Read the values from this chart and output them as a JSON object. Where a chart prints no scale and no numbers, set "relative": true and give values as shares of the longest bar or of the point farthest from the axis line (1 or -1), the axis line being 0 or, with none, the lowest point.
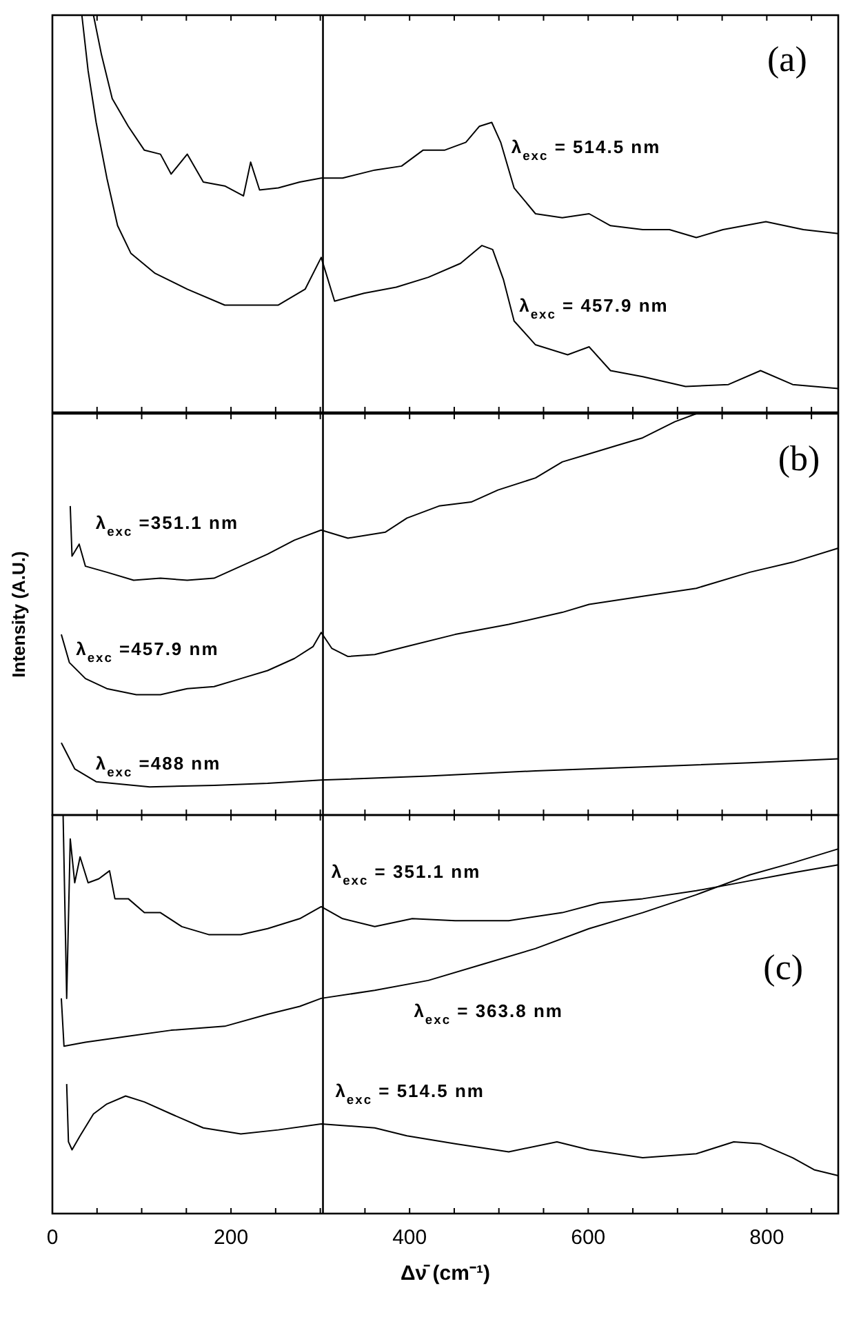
{
  "chart_data": [
    {
      "type": "line",
      "relative": true,
      "tick_labels": false,
      "xlim": [
        0,
        880
      ],
      "xticks": [
        {
          "value": 0,
          "label": null
        },
        {
          "value": 50,
          "label": null
        },
        {
          "value": 100,
          "label": null
        },
        {
          "value": 150,
          "label": null
        },
        {
          "value": 200,
          "label": null
        },
        {
          "value": 250,
          "label": null
        },
        {
          "value": 300,
          "label": null
        },
        {
          "value": 350,
          "label": null
        },
        {
          "value": 400,
          "label": null
        },
        {
          "value": 450,
          "label": null
        },
        {
          "value": 500,
          "label": null
        },
        {
          "value": 550,
          "label": null
        },
        {
          "value": 600,
          "label": null
        },
        {
          "value": 650,
          "label": null
        },
        {
          "value": 700,
          "label": null
        },
        {
          "value": 750,
          "label": null
        },
        {
          "value": 800,
          "label": null
        },
        {
          "value": 850,
          "label": null
        }
      ],
      "annotations": [
        "(a)"
      ],
      "ref_lines": [
        {
          "axis": "x",
          "value": 303,
          "color": "#000000"
        }
      ],
      "series": [
        {
          "name": "λ$_{exc}$ = 514.5 nm",
          "color": "#000000",
          "x": [
            46,
            55,
            67,
            85,
            103,
            121,
            133,
            151,
            169,
            193,
            214,
            222,
            232,
            253,
            277,
            301,
            325,
            361,
            391,
            415,
            439,
            463,
            478,
            492,
            502,
            517,
            541,
            571,
            601,
            625,
            661,
            691,
            721,
            751,
            799,
            841,
            880
          ],
          "values": [
            1.0,
            0.9,
            0.79,
            0.72,
            0.66,
            0.65,
            0.6,
            0.65,
            0.58,
            0.57,
            0.545,
            0.63,
            0.56,
            0.565,
            0.58,
            0.59,
            0.59,
            0.61,
            0.62,
            0.66,
            0.66,
            0.68,
            0.72,
            0.73,
            0.68,
            0.565,
            0.5,
            0.49,
            0.5,
            0.47,
            0.46,
            0.46,
            0.44,
            0.46,
            0.48,
            0.46,
            0.45
          ]
        },
        {
          "name": "λ$_{exc}$ = 457.9 nm",
          "color": "#000000",
          "x": [
            33,
            40,
            49,
            61,
            73,
            88,
            115,
            151,
            193,
            223,
            253,
            283,
            301,
            316,
            349,
            385,
            421,
            457,
            481,
            493,
            505,
            517,
            541,
            577,
            601,
            625,
            661,
            709,
            757,
            793,
            829,
            880
          ],
          "values": [
            1.0,
            0.86,
            0.73,
            0.59,
            0.47,
            0.4,
            0.35,
            0.31,
            0.27,
            0.27,
            0.27,
            0.31,
            0.39,
            0.28,
            0.3,
            0.315,
            0.34,
            0.375,
            0.42,
            0.41,
            0.335,
            0.23,
            0.17,
            0.145,
            0.165,
            0.105,
            0.09,
            0.065,
            0.07,
            0.105,
            0.07,
            0.06
          ]
        }
      ]
    },
    {
      "type": "line",
      "relative": true,
      "tick_labels": false,
      "xlim": [
        0,
        880
      ],
      "xticks": [
        {
          "value": 0,
          "label": null
        },
        {
          "value": 50,
          "label": null
        },
        {
          "value": 100,
          "label": null
        },
        {
          "value": 150,
          "label": null
        },
        {
          "value": 200,
          "label": null
        },
        {
          "value": 250,
          "label": null
        },
        {
          "value": 300,
          "label": null
        },
        {
          "value": 350,
          "label": null
        },
        {
          "value": 400,
          "label": null
        },
        {
          "value": 450,
          "label": null
        },
        {
          "value": 500,
          "label": null
        },
        {
          "value": 550,
          "label": null
        },
        {
          "value": 600,
          "label": null
        },
        {
          "value": 650,
          "label": null
        },
        {
          "value": 700,
          "label": null
        },
        {
          "value": 750,
          "label": null
        },
        {
          "value": 800,
          "label": null
        },
        {
          "value": 850,
          "label": null
        }
      ],
      "ylabel": "Intensity (A.U.)",
      "annotations": [
        "(b)"
      ],
      "ref_lines": [
        {
          "axis": "x",
          "value": 303,
          "color": "#000000"
        }
      ],
      "series": [
        {
          "name": "λ$_{exc}$ =351.1 nm",
          "color": "#000000",
          "x": [
            20,
            22,
            30,
            37,
            61,
            91,
            121,
            151,
            181,
            211,
            241,
            271,
            301,
            331,
            373,
            397,
            433,
            469,
            499,
            541,
            571,
            601,
            631,
            661,
            697,
            721
          ],
          "values": [
            0.77,
            0.645,
            0.675,
            0.62,
            0.605,
            0.585,
            0.59,
            0.585,
            0.59,
            0.62,
            0.65,
            0.685,
            0.71,
            0.69,
            0.705,
            0.74,
            0.77,
            0.78,
            0.81,
            0.84,
            0.88,
            0.9,
            0.92,
            0.94,
            0.98,
            1.0
          ]
        },
        {
          "name": "λ$_{exc}$ =457.9 nm",
          "color": "#000000",
          "x": [
            10,
            19,
            37,
            61,
            94,
            121,
            151,
            181,
            211,
            241,
            271,
            292,
            301,
            313,
            331,
            361,
            397,
            451,
            511,
            571,
            601,
            661,
            721,
            781,
            829,
            880
          ],
          "values": [
            0.45,
            0.38,
            0.34,
            0.315,
            0.3,
            0.3,
            0.315,
            0.32,
            0.34,
            0.36,
            0.39,
            0.42,
            0.455,
            0.415,
            0.395,
            0.4,
            0.42,
            0.45,
            0.475,
            0.505,
            0.525,
            0.545,
            0.565,
            0.605,
            0.63,
            0.665
          ]
        },
        {
          "name": "λ$_{exc}$ =488 nm",
          "color": "#000000",
          "x": [
            10,
            25,
            49,
            109,
            181,
            241,
            301,
            421,
            541,
            661,
            781,
            880
          ],
          "values": [
            0.18,
            0.115,
            0.083,
            0.07,
            0.074,
            0.079,
            0.087,
            0.097,
            0.11,
            0.12,
            0.13,
            0.14
          ]
        }
      ]
    },
    {
      "type": "line",
      "relative": true,
      "tick_labels": "x",
      "xlim": [
        0,
        880
      ],
      "xticks": [
        0,
        {
          "value": 50,
          "label": null
        },
        {
          "value": 100,
          "label": null
        },
        {
          "value": 150,
          "label": null
        },
        200,
        {
          "value": 250,
          "label": null
        },
        {
          "value": 300,
          "label": null
        },
        {
          "value": 350,
          "label": null
        },
        400,
        {
          "value": 450,
          "label": null
        },
        {
          "value": 500,
          "label": null
        },
        {
          "value": 550,
          "label": null
        },
        600,
        {
          "value": 650,
          "label": null
        },
        {
          "value": 700,
          "label": null
        },
        {
          "value": 750,
          "label": null
        },
        800,
        {
          "value": 850,
          "label": null
        }
      ],
      "xlabel": "Δν̄ (cm⁻¹)",
      "annotations": [
        "(c)"
      ],
      "ref_lines": [
        {
          "axis": "x",
          "value": 303,
          "color": "#000000"
        }
      ],
      "series": [
        {
          "name": "λ$_{exc}$ = 351.1 nm",
          "color": "#000000",
          "x": [
            12,
            16,
            20,
            25,
            31,
            40,
            52,
            64,
            70,
            85,
            103,
            121,
            145,
            175,
            211,
            241,
            277,
            301,
            325,
            361,
            403,
            451,
            511,
            571,
            613,
            661,
            721,
            781,
            829,
            880
          ],
          "values": [
            1.0,
            0.54,
            0.94,
            0.83,
            0.895,
            0.83,
            0.84,
            0.86,
            0.79,
            0.79,
            0.755,
            0.755,
            0.72,
            0.7,
            0.7,
            0.715,
            0.74,
            0.77,
            0.74,
            0.72,
            0.74,
            0.735,
            0.735,
            0.755,
            0.78,
            0.79,
            0.81,
            0.835,
            0.855,
            0.875
          ]
        },
        {
          "name": "λ$_{exc}$ = 363.8 nm",
          "color": "#000000",
          "x": [
            10,
            13,
            37,
            85,
            133,
            193,
            241,
            277,
            301,
            361,
            421,
            481,
            541,
            601,
            661,
            721,
            781,
            829,
            880
          ],
          "values": [
            0.54,
            0.42,
            0.43,
            0.445,
            0.46,
            0.47,
            0.5,
            0.52,
            0.54,
            0.56,
            0.585,
            0.625,
            0.665,
            0.715,
            0.755,
            0.8,
            0.85,
            0.88,
            0.915
          ]
        },
        {
          "name": "λ$_{exc}$ = 514.5 nm",
          "color": "#000000",
          "x": [
            16,
            18,
            22,
            31,
            46,
            61,
            82,
            103,
            133,
            169,
            211,
            253,
            301,
            361,
            397,
            451,
            511,
            565,
            601,
            661,
            721,
            763,
            793,
            829,
            853,
            880
          ],
          "values": [
            0.325,
            0.18,
            0.16,
            0.195,
            0.25,
            0.275,
            0.295,
            0.28,
            0.25,
            0.215,
            0.2,
            0.21,
            0.225,
            0.215,
            0.195,
            0.175,
            0.155,
            0.18,
            0.16,
            0.14,
            0.15,
            0.18,
            0.175,
            0.14,
            0.11,
            0.095
          ]
        }
      ]
    }
  ]
}
